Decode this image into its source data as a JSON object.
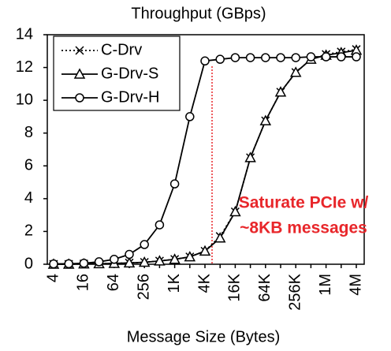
{
  "chart_data": {
    "type": "line",
    "title": "Throughput (GBps)",
    "x_label": "Message Size (Bytes)",
    "categories": [
      "4",
      null,
      "16",
      null,
      "64",
      null,
      "256",
      null,
      "1K",
      null,
      "4K",
      null,
      "16K",
      null,
      "64K",
      null,
      "256K",
      null,
      "1M",
      null,
      "4M"
    ],
    "series": [
      {
        "name": "C-Drv",
        "color": "#000000",
        "marker": "x",
        "linestyle": "dotted",
        "values": [
          0,
          0,
          0.02,
          0.03,
          0.05,
          0.08,
          0.12,
          0.2,
          0.3,
          0.45,
          0.8,
          1.7,
          3.2,
          6.5,
          8.75,
          10.5,
          11.7,
          12.5,
          12.8,
          12.95,
          13.1
        ]
      },
      {
        "name": "G-Drv-S",
        "color": "#000000",
        "marker": "triangle",
        "linestyle": "solid",
        "values": [
          0,
          0,
          0.02,
          0.03,
          0.05,
          0.08,
          0.12,
          0.2,
          0.3,
          0.45,
          0.8,
          1.6,
          3.2,
          6.5,
          8.75,
          10.5,
          11.7,
          12.5,
          12.75,
          12.9,
          13.05
        ]
      },
      {
        "name": "G-Drv-H",
        "color": "#000000",
        "marker": "circle",
        "linestyle": "solid",
        "values": [
          0.02,
          0.03,
          0.06,
          0.15,
          0.3,
          0.6,
          1.2,
          2.4,
          4.9,
          9.0,
          12.4,
          12.5,
          12.6,
          12.6,
          12.6,
          12.6,
          12.6,
          12.65,
          12.65,
          12.65,
          12.65
        ]
      }
    ],
    "ylim": [
      0,
      14
    ],
    "yticks": [
      0,
      2,
      4,
      6,
      8,
      10,
      12,
      14
    ],
    "legend": "upper left",
    "annotations": [
      "Saturate PCIe w/",
      "~8KB messages"
    ],
    "annotation_color": "#e8262a"
  }
}
